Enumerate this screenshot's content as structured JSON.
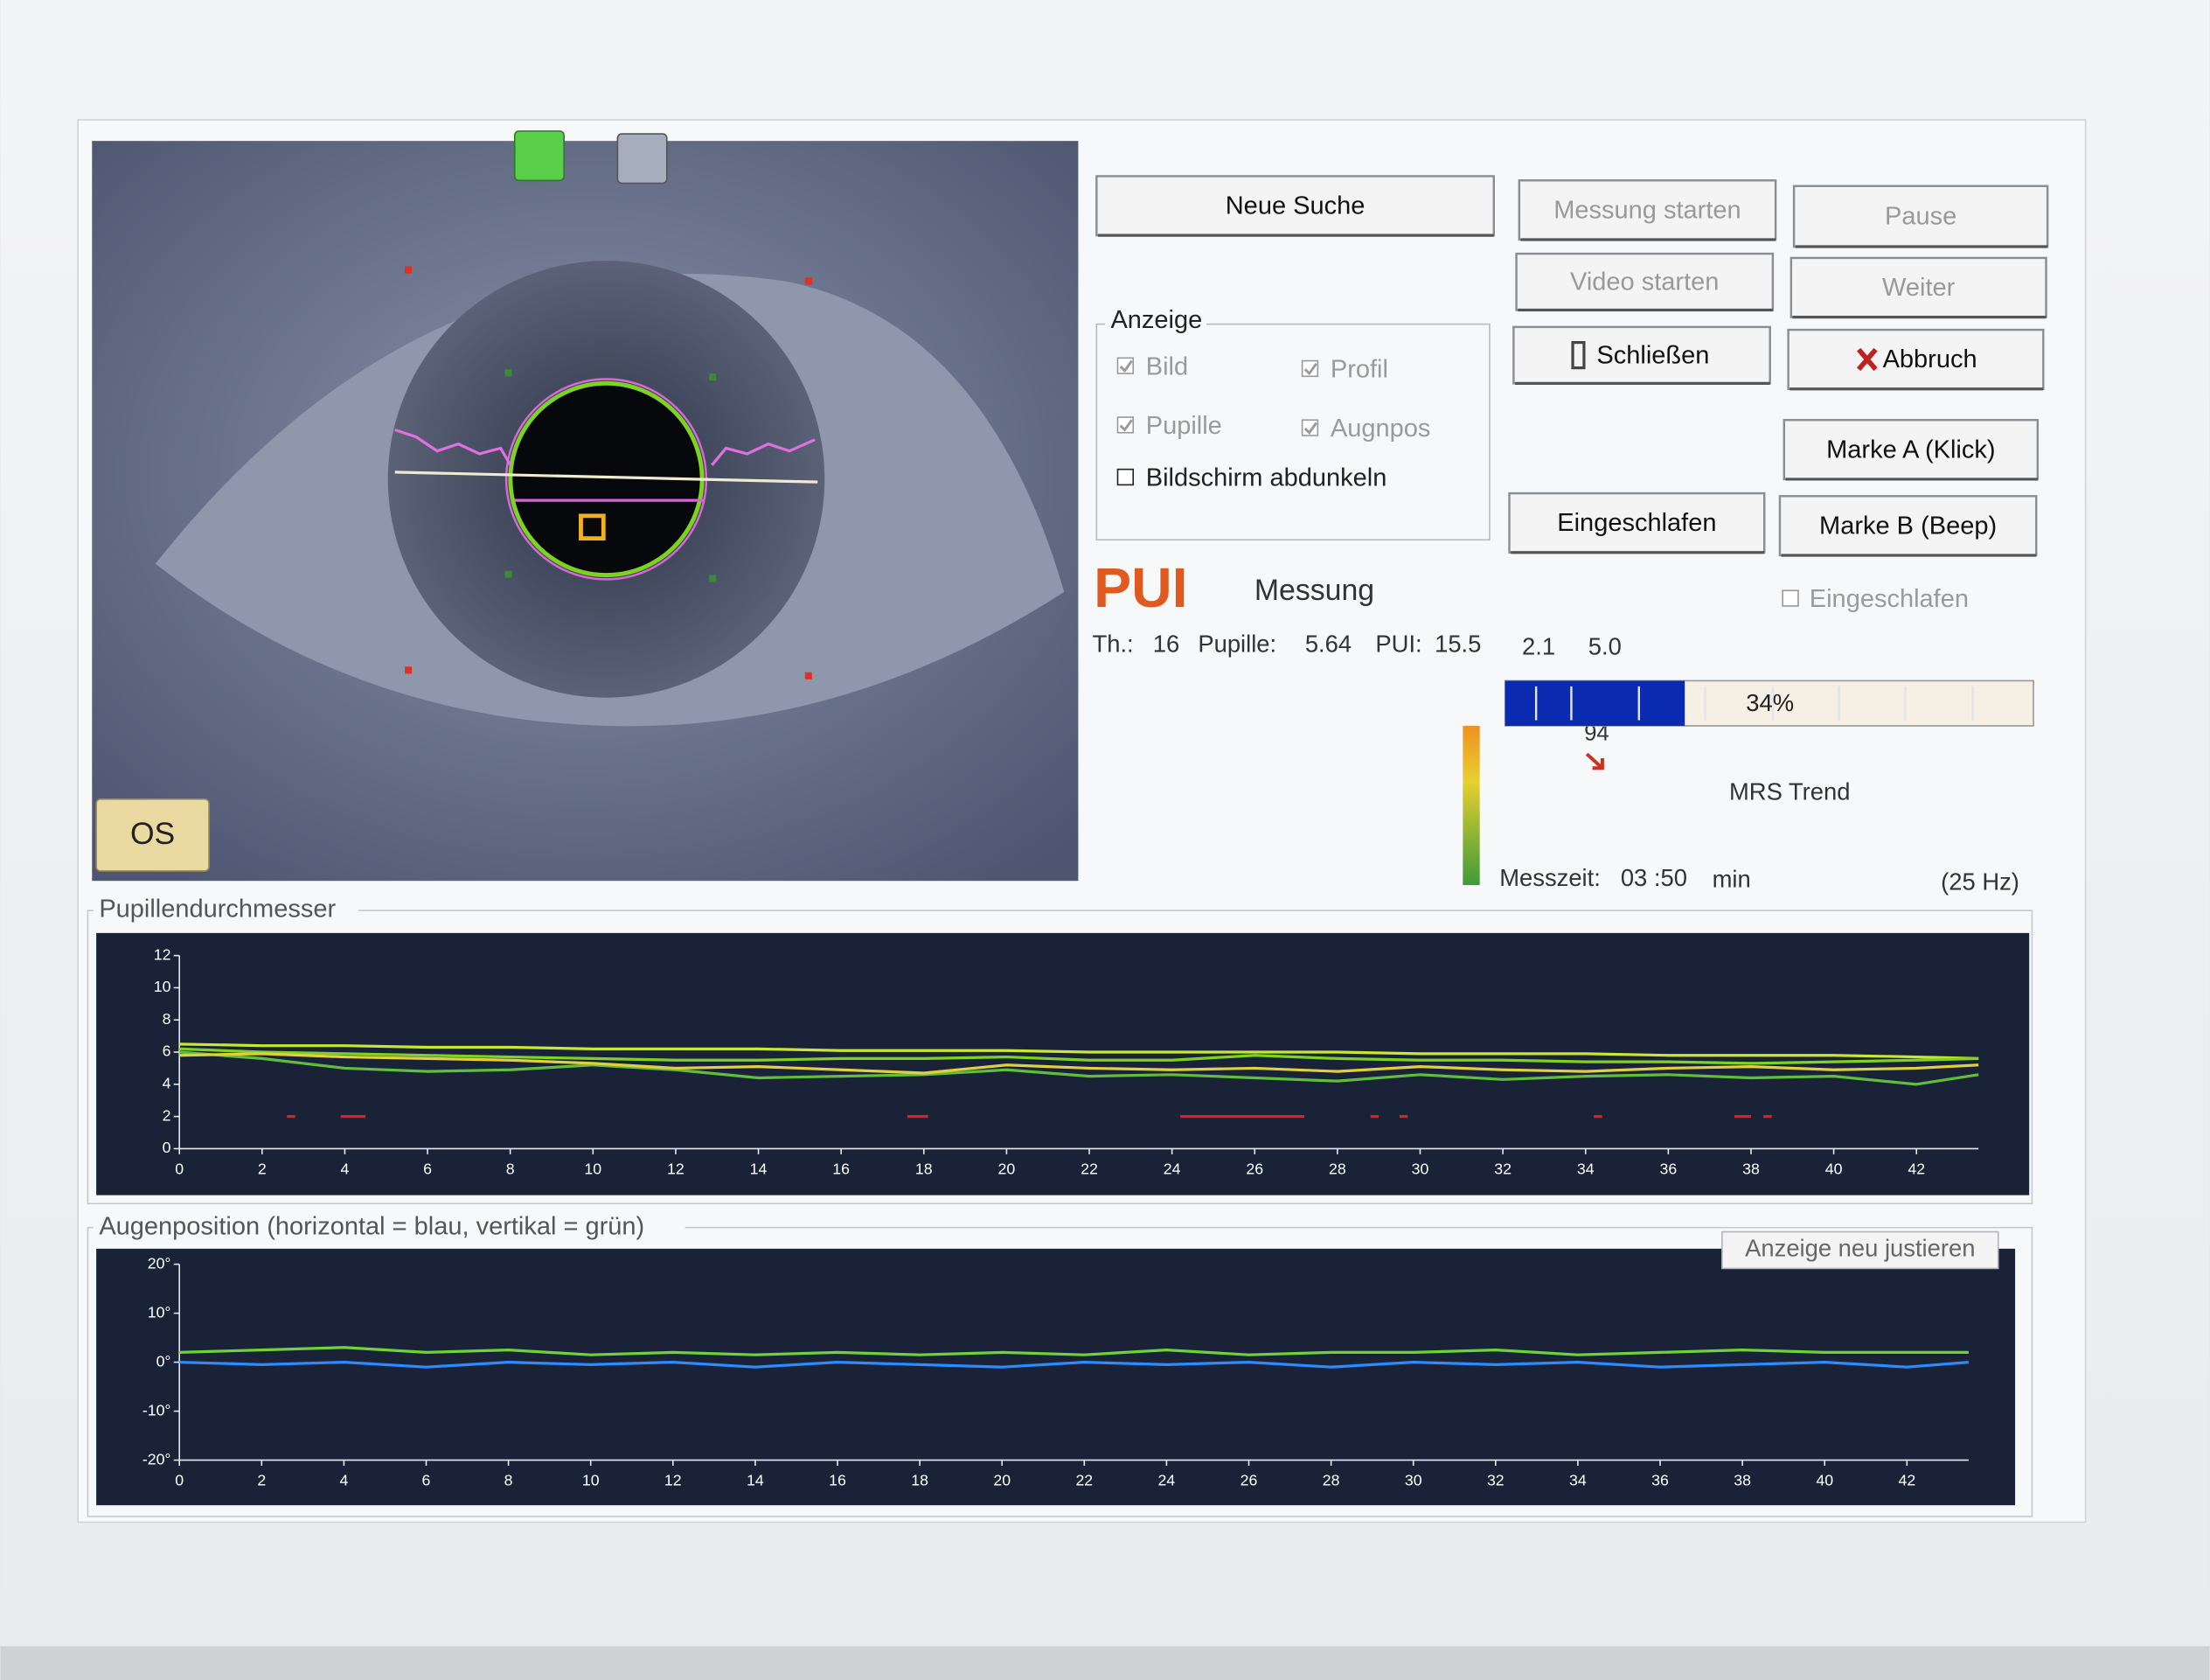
{
  "eye_panel": {
    "eye_label": "OS"
  },
  "buttons": [
    {
      "label": "Neue Suche",
      "enabled": true
    },
    {
      "label": "Messung starten",
      "enabled": false
    },
    {
      "label": "Pause",
      "enabled": false
    },
    {
      "label": "Video starten",
      "enabled": false
    },
    {
      "label": "Weiter",
      "enabled": false
    },
    {
      "label": "Schließen",
      "enabled": true
    },
    {
      "label": "Abbruch",
      "enabled": true
    },
    {
      "label": "Marke A (Klick)",
      "enabled": true
    },
    {
      "label": "Eingeschlafen",
      "enabled": true
    },
    {
      "label": "Marke B (Beep)",
      "enabled": true
    }
  ],
  "display_group": {
    "title": "Anzeige",
    "options": [
      {
        "label": "Bild",
        "checked": true,
        "enabled": false
      },
      {
        "label": "Profil",
        "checked": true,
        "enabled": false
      },
      {
        "label": "Pupille",
        "checked": true,
        "enabled": false
      },
      {
        "label": "Augnpos",
        "checked": true,
        "enabled": false
      },
      {
        "label": "Bildschirm abdunkeln",
        "checked": false,
        "enabled": true
      }
    ]
  },
  "status": {
    "pui": "PUI",
    "mode": "Messung",
    "sleep_checkbox": {
      "label": "Eingeschlafen",
      "checked": false
    }
  },
  "readout": {
    "th_label": "Th.:",
    "th": "16",
    "pupil_label": "Pupille:",
    "pupil": "5.64",
    "pui_label": "PUI:",
    "pui": "15.5",
    "v1": "2.1",
    "v2": "5.0"
  },
  "mrs": {
    "value": 34,
    "label": "34%",
    "level": "94",
    "trend_label": "MRS Trend"
  },
  "time": {
    "label": "Messzeit:",
    "value": "03 :50",
    "unit": "min",
    "rate": "(25 Hz)"
  },
  "pupil_chart": {
    "type": "line",
    "title": "Pupillendurchmesser",
    "x": [
      0,
      2,
      4,
      6,
      8,
      10,
      12,
      14,
      16,
      18,
      20,
      22,
      24,
      26,
      28,
      30,
      32,
      34,
      36,
      38,
      40,
      42,
      43.5
    ],
    "series": [
      {
        "color": "#c8e632",
        "values": [
          6.5,
          6.4,
          6.4,
          6.3,
          6.3,
          6.2,
          6.2,
          6.2,
          6.1,
          6.1,
          6.1,
          6.0,
          6.0,
          6.0,
          6.0,
          5.9,
          5.9,
          5.9,
          5.8,
          5.8,
          5.8,
          5.7,
          5.6
        ]
      },
      {
        "color": "#7ed321",
        "values": [
          6.2,
          6.0,
          5.9,
          5.8,
          5.7,
          5.6,
          5.5,
          5.5,
          5.6,
          5.6,
          5.7,
          5.5,
          5.5,
          5.8,
          5.6,
          5.5,
          5.5,
          5.4,
          5.4,
          5.3,
          5.4,
          5.5,
          5.6
        ]
      },
      {
        "color": "#5fbf3a",
        "values": [
          6.0,
          5.6,
          5.0,
          4.8,
          4.9,
          5.2,
          4.9,
          4.4,
          4.5,
          4.6,
          4.9,
          4.5,
          4.6,
          4.4,
          4.2,
          4.6,
          4.3,
          4.5,
          4.6,
          4.4,
          4.5,
          4.0,
          4.6
        ]
      },
      {
        "color": "#e0d040",
        "values": [
          5.8,
          5.9,
          5.7,
          5.6,
          5.5,
          5.3,
          5.0,
          5.1,
          4.9,
          4.7,
          5.2,
          5.0,
          4.9,
          5.0,
          4.8,
          5.1,
          4.9,
          4.8,
          5.0,
          5.1,
          4.9,
          5.0,
          5.2
        ]
      }
    ],
    "markers": {
      "color": "#e02020",
      "y": 2,
      "ranges": [
        [
          2.6,
          2.8
        ],
        [
          3.9,
          4.5
        ],
        [
          17.6,
          18.1
        ],
        [
          24.2,
          27.2
        ],
        [
          28.8,
          29.0
        ],
        [
          29.5,
          29.7
        ],
        [
          34.2,
          34.4
        ],
        [
          37.6,
          38.0
        ],
        [
          38.3,
          38.5
        ]
      ]
    },
    "xlim": [
      0,
      43.5
    ],
    "ylim": [
      0,
      12
    ],
    "xticks": [
      0,
      2,
      4,
      6,
      8,
      10,
      12,
      14,
      16,
      18,
      20,
      22,
      24,
      26,
      28,
      30,
      32,
      34,
      36,
      38,
      40,
      42
    ],
    "yticks": [
      0,
      2,
      4,
      6,
      8,
      10,
      12
    ]
  },
  "position_chart": {
    "type": "line",
    "title": "Augenposition (horizontal = blau,  vertikal = grün)",
    "button": "Anzeige neu justieren",
    "x": [
      0,
      2,
      4,
      6,
      8,
      10,
      12,
      14,
      16,
      18,
      20,
      22,
      24,
      26,
      28,
      30,
      32,
      34,
      36,
      38,
      40,
      42,
      43.5
    ],
    "series": [
      {
        "color": "#2a8cff",
        "values": [
          0,
          -0.5,
          0,
          -1,
          0,
          -0.5,
          0,
          -1,
          0,
          -0.5,
          -1,
          0,
          -0.5,
          0,
          -1,
          0,
          -0.5,
          0,
          -1,
          -0.5,
          0,
          -1,
          0
        ]
      },
      {
        "color": "#6fd23a",
        "values": [
          2,
          2.5,
          3,
          2,
          2.5,
          1.5,
          2,
          1.5,
          2,
          1.5,
          2,
          1.5,
          2.5,
          1.5,
          2,
          2,
          2.5,
          1.5,
          2,
          2.5,
          2,
          2,
          2
        ]
      }
    ],
    "xlim": [
      0,
      43.5
    ],
    "ylim": [
      -20,
      20
    ],
    "xticks": [
      0,
      2,
      4,
      6,
      8,
      10,
      12,
      14,
      16,
      18,
      20,
      22,
      24,
      26,
      28,
      30,
      32,
      34,
      36,
      38,
      40,
      42
    ],
    "yticks": [
      {
        "value": 20,
        "label": "20°"
      },
      {
        "value": 10,
        "label": "10°"
      },
      {
        "value": 0,
        "label": "0°"
      },
      {
        "value": -10,
        "label": "-10°"
      },
      {
        "value": -20,
        "label": "-20°"
      }
    ]
  }
}
